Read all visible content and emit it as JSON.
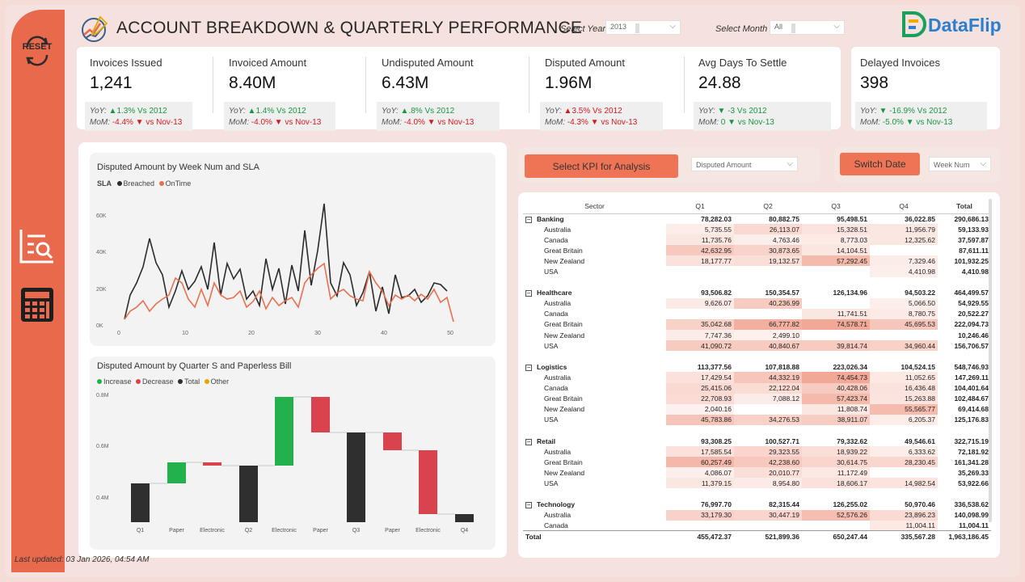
{
  "header": {
    "title": "ACCOUNT BREAKDOWN & QUARTERLY PERFORMANCE",
    "select_year_label": "Select Year",
    "select_year_value": "2013",
    "select_month_label": "Select Month",
    "select_month_value": "All",
    "brand": "DataFlip"
  },
  "sidebar": {
    "reset_label": "RESET"
  },
  "kpis": [
    {
      "label": "Invoices Issued",
      "value": "1,241",
      "yoy_prefix": "YoY:",
      "yoy": "▲1.3% Vs 2012",
      "mom_prefix": "MoM:",
      "mom": "-4.4% ▼ vs Nov-13"
    },
    {
      "label": "Invoiced Amount",
      "value": "8.40M",
      "yoy_prefix": "YoY:",
      "yoy": "▲1.4% Vs 2012",
      "mom_prefix": "MoM:",
      "mom": "-4.0% ▼ vs Nov-13"
    },
    {
      "label": "Undisputed Amount",
      "value": "6.43M",
      "yoy_prefix": "YoY:",
      "yoy": "▲.8% Vs 2012",
      "mom_prefix": "MoM:",
      "mom": "-4.0% ▼ vs Nov-13"
    },
    {
      "label": "Disputed Amount",
      "value": "1.96M",
      "yoy_prefix": "YoY:",
      "yoy": "▲3.5% Vs 2012",
      "mom_prefix": "MoM:",
      "mom": "-4.3% ▼ vs Nov-13"
    },
    {
      "label": "Avg Days To Settle",
      "value": "24.88",
      "yoy_prefix": "YoY:",
      "yoy": "▼ -3 Vs 2012",
      "mom_prefix": "MoM:",
      "mom": "0 ▼ vs Nov-13"
    },
    {
      "label": "Delayed Invoices",
      "value": "398",
      "yoy_prefix": "YoY:",
      "yoy": "▼ -16.9% Vs 2012",
      "mom_prefix": "MoM:",
      "mom": "-5.0% ▼ vs Nov-13"
    }
  ],
  "colors": {
    "accent": "#e8694b",
    "button": "#ef7456",
    "breached": "#2b2b2b",
    "ontime": "#e8704f",
    "increase": "#22b14c",
    "decrease": "#d9434e",
    "total": "#2f2f2f",
    "other": "#e0a800"
  },
  "analysis": {
    "kpi_button": "Select KPI for Analysis",
    "kpi_value": "Disputed Amount",
    "switch_button": "Switch Date",
    "date_value": "Week Num"
  },
  "line_chart": {
    "title": "Disputed Amount by Week Num and SLA",
    "legend_title": "SLA",
    "legend": [
      "Breached",
      "OnTime"
    ],
    "y_ticks": [
      "60K",
      "40K",
      "20K",
      "0K"
    ],
    "x_ticks": [
      "0",
      "10",
      "20",
      "30",
      "40",
      "50"
    ]
  },
  "waterfall": {
    "title": "Disputed Amount by Quarter S and Paperless Bill",
    "legend": [
      "Increase",
      "Decrease",
      "Total",
      "Other"
    ],
    "y_ticks": [
      "0.8M",
      "0.6M",
      "0.4M"
    ]
  },
  "matrix": {
    "headers": [
      "Sector",
      "Q1",
      "Q2",
      "Q3",
      "Q4",
      "Total"
    ],
    "groups": [
      {
        "name": "Banking",
        "totals": [
          "78,282.03",
          "80,882.75",
          "95,498.51",
          "36,022.85",
          "290,686.13"
        ],
        "rows": [
          {
            "name": "Australia",
            "v": [
              "5,735.55",
              "26,113.07",
              "15,328.51",
              "11,956.79",
              "59,133.93"
            ]
          },
          {
            "name": "Canada",
            "v": [
              "11,735.76",
              "4,763.46",
              "8,773.03",
              "12,325.62",
              "37,597.87"
            ]
          },
          {
            "name": "Great Britain",
            "v": [
              "42,632.95",
              "30,873.65",
              "14,104.51",
              "",
              "87,611.11"
            ]
          },
          {
            "name": "New Zealand",
            "v": [
              "18,177.77",
              "19,132.57",
              "57,292.45",
              "7,329.46",
              "101,932.25"
            ]
          },
          {
            "name": "USA",
            "v": [
              "",
              "",
              "",
              "4,410.98",
              "4,410.98"
            ]
          }
        ]
      },
      {
        "name": "Healthcare",
        "totals": [
          "93,506.82",
          "150,354.57",
          "126,134.96",
          "94,503.22",
          "464,499.57"
        ],
        "rows": [
          {
            "name": "Australia",
            "v": [
              "9,626.07",
              "40,236.99",
              "",
              "5,066.50",
              "54,929.55"
            ]
          },
          {
            "name": "Canada",
            "v": [
              "",
              "",
              "11,741.51",
              "8,780.75",
              "20,522.27"
            ]
          },
          {
            "name": "Great Britain",
            "v": [
              "35,042.68",
              "66,777.82",
              "74,578.71",
              "45,695.53",
              "222,094.73"
            ]
          },
          {
            "name": "New Zealand",
            "v": [
              "7,747.36",
              "2,499.10",
              "",
              "",
              "10,246.46"
            ]
          },
          {
            "name": "USA",
            "v": [
              "41,090.72",
              "40,840.67",
              "39,814.74",
              "34,960.44",
              "156,706.57"
            ]
          }
        ]
      },
      {
        "name": "Logistics",
        "totals": [
          "113,377.56",
          "107,818.88",
          "223,026.34",
          "104,524.15",
          "548,746.93"
        ],
        "rows": [
          {
            "name": "Australia",
            "v": [
              "17,429.54",
              "44,332.19",
              "74,454.73",
              "11,052.65",
              "147,269.11"
            ]
          },
          {
            "name": "Canada",
            "v": [
              "25,415.06",
              "22,122.04",
              "40,428.06",
              "16,436.48",
              "104,401.64"
            ]
          },
          {
            "name": "Great Britain",
            "v": [
              "22,708.93",
              "7,088.12",
              "57,423.74",
              "15,263.88",
              "102,484.67"
            ]
          },
          {
            "name": "New Zealand",
            "v": [
              "2,040.16",
              "",
              "11,808.74",
              "55,565.77",
              "69,414.68"
            ]
          },
          {
            "name": "USA",
            "v": [
              "45,783.86",
              "34,276.53",
              "38,911.07",
              "6,205.37",
              "125,176.83"
            ]
          }
        ]
      },
      {
        "name": "Retail",
        "totals": [
          "93,308.25",
          "100,527.71",
          "79,332.62",
          "49,546.61",
          "322,715.19"
        ],
        "rows": [
          {
            "name": "Australia",
            "v": [
              "17,585.54",
              "29,323.55",
              "18,939.22",
              "6,333.62",
              "72,181.92"
            ]
          },
          {
            "name": "Great Britain",
            "v": [
              "60,257.49",
              "42,238.60",
              "30,614.75",
              "28,230.45",
              "161,341.28"
            ]
          },
          {
            "name": "New Zealand",
            "v": [
              "4,086.07",
              "20,010.77",
              "11,172.49",
              "",
              "35,269.33"
            ]
          },
          {
            "name": "USA",
            "v": [
              "11,379.15",
              "8,954.80",
              "18,606.17",
              "14,982.54",
              "53,922.66"
            ]
          }
        ]
      },
      {
        "name": "Technology",
        "totals": [
          "76,997.70",
          "82,315.44",
          "126,255.02",
          "50,970.46",
          "336,538.62"
        ],
        "rows": [
          {
            "name": "Australia",
            "v": [
              "33,179.30",
              "30,447.19",
              "52,576.26",
              "23,896.23",
              "140,098.99"
            ]
          },
          {
            "name": "Canada",
            "v": [
              "",
              "",
              "",
              "11,004.11",
              "11,004.11"
            ]
          }
        ]
      }
    ],
    "total_label": "Total",
    "grand_totals": [
      "455,472.37",
      "521,899.36",
      "650,247.44",
      "335,567.28",
      "1,963,186.45"
    ]
  },
  "footer": {
    "last_updated": "Last updated: 03 Jan 2026, 04:54 AM"
  }
}
